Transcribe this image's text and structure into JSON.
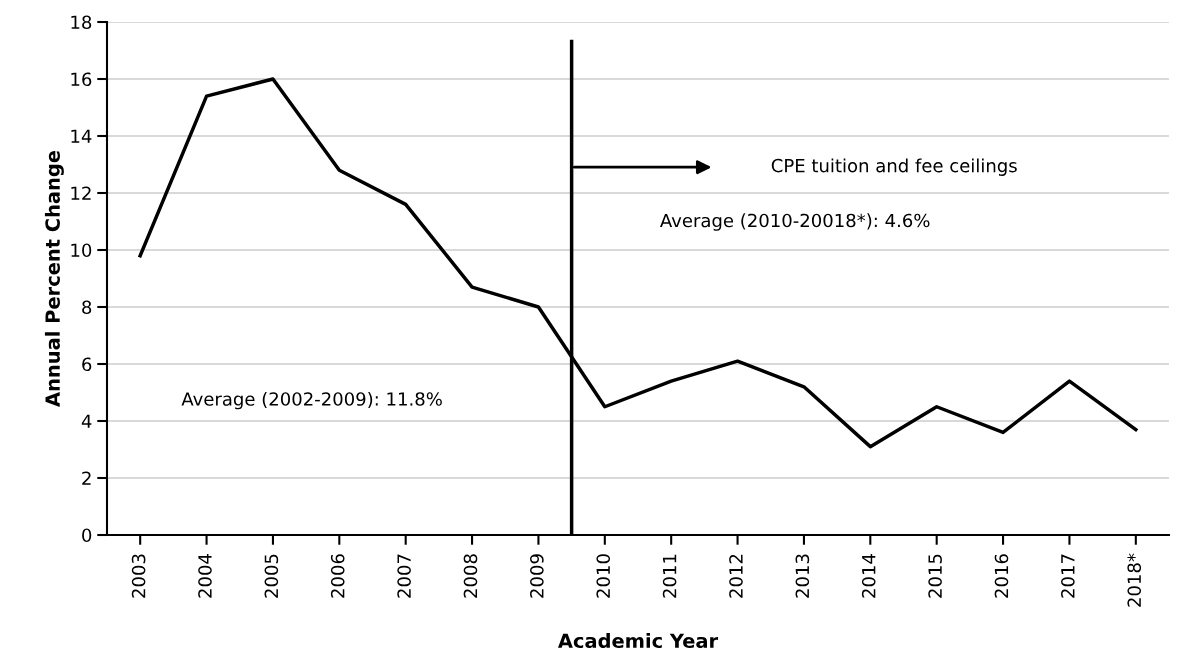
{
  "chart_data": {
    "type": "line",
    "xlabel": "Academic Year",
    "ylabel": "Annual Percent Change",
    "x": [
      2003,
      2004,
      2005,
      2006,
      2007,
      2008,
      2009,
      2010,
      2011,
      2012,
      2013,
      2014,
      2015,
      2016,
      2017,
      2018
    ],
    "series": [
      {
        "color": "#000000",
        "values": [
          9.8,
          15.4,
          16.0,
          12.8,
          11.6,
          8.7,
          8.0,
          4.5,
          5.4,
          6.1,
          5.2,
          3.1,
          4.5,
          3.6,
          5.4,
          3.7
        ]
      }
    ],
    "xlim": [
      2002.5,
      2018.5
    ],
    "xticks": [
      2003,
      2004,
      2005,
      2006,
      2007,
      2008,
      2009,
      2010,
      2011,
      2012,
      2013,
      2014,
      2015,
      2016,
      2017,
      {
        "value": 2018,
        "label": "2018*"
      }
    ],
    "ylim": [
      0,
      18
    ],
    "yticks": [
      0,
      2,
      4,
      6,
      8,
      10,
      12,
      14,
      16,
      18
    ],
    "grid": "y",
    "marker": "none",
    "line_style": "solid",
    "ref_lines": [
      {
        "axis": "x",
        "value": 2009.5,
        "label": "CPE tuition and fee ceilings",
        "color": "#000000"
      }
    ],
    "annotations": [
      "Average (2002-2009): 11.8%",
      "Average (2010-20018*): 4.6%"
    ]
  }
}
